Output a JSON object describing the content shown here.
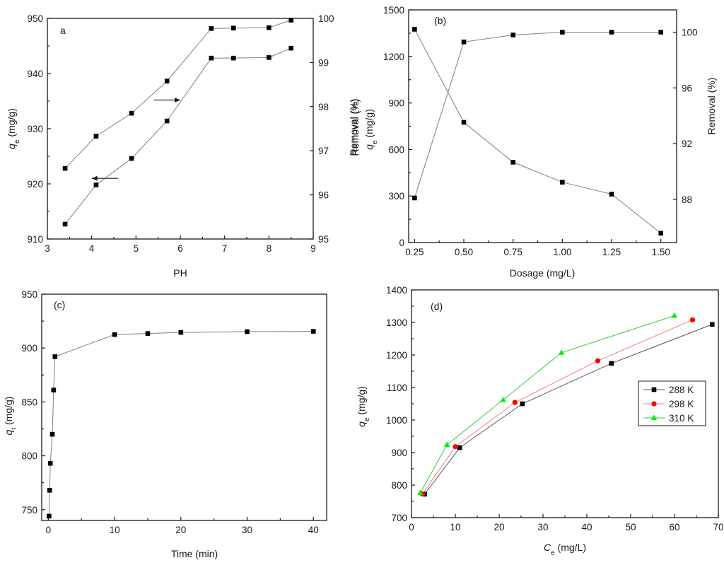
{
  "chart_data": [
    {
      "panel": "a",
      "type": "line",
      "panel_label": "a",
      "xlabel": "PH",
      "ylabel_main": "q",
      "ylabel_sub": "e",
      "ylabel_unit": " (mg/g)",
      "ylabel_right": "Removal (%)",
      "xlim": [
        3,
        9
      ],
      "ylim": [
        910,
        950
      ],
      "ylim_right": [
        95,
        100
      ],
      "xticks": [
        "3",
        "4",
        "5",
        "6",
        "7",
        "8",
        "9"
      ],
      "yticks": [
        "910",
        "920",
        "930",
        "940",
        "950"
      ],
      "yticks_right": [
        "95",
        "96",
        "97",
        "98",
        "99",
        "100"
      ],
      "series": [
        {
          "name": "qe",
          "axis": "left",
          "color": "#7f7f7f",
          "marker": "square",
          "x": [
            3.4,
            4.1,
            4.9,
            5.7,
            6.7,
            7.2,
            8.0,
            8.5
          ],
          "values": [
            912.7,
            919.8,
            924.6,
            931.4,
            942.8,
            942.8,
            942.9,
            944.6
          ]
        },
        {
          "name": "Removal",
          "axis": "right",
          "color": "#7f7f7f",
          "marker": "square",
          "x": [
            3.4,
            4.1,
            4.9,
            5.7,
            6.7,
            7.2,
            8.0,
            8.5
          ],
          "values": [
            96.6,
            97.33,
            97.85,
            98.58,
            99.77,
            99.78,
            99.79,
            99.96
          ]
        }
      ],
      "annotations": [
        {
          "type": "arrow",
          "direction": "left",
          "x": 4.6,
          "y": 921.0,
          "length": 0.6,
          "axis": "left"
        },
        {
          "type": "arrow",
          "direction": "right",
          "x": 5.4,
          "y": 98.15,
          "length": 0.6,
          "axis": "right"
        }
      ]
    },
    {
      "panel": "b",
      "type": "line",
      "panel_label": "(b)",
      "xlabel": "Dosage (mg/L)",
      "ylabel_main": "q",
      "ylabel_sub": "e",
      "ylabel_unit": " (mg/g)",
      "ylabel_extra": "Removal (%)",
      "ylabel_right": "Removal (%)",
      "xlim": [
        0.22,
        1.58
      ],
      "ylim": [
        0,
        1500
      ],
      "ylim_right": [
        84.9,
        101.6
      ],
      "xticks": [
        "0.25",
        "0.50",
        "0.75",
        "1.00",
        "1.25",
        "1.50"
      ],
      "xtick_values": [
        0.25,
        0.5,
        0.75,
        1.0,
        1.25,
        1.5
      ],
      "yticks": [
        "0",
        "300",
        "600",
        "900",
        "1200",
        "1500"
      ],
      "yticks_right": [
        "88",
        "92",
        "96",
        "100"
      ],
      "series": [
        {
          "name": "qe",
          "axis": "left",
          "color": "#7f7f7f",
          "marker": "square",
          "x": [
            0.25,
            0.5,
            0.75,
            1.0,
            1.25,
            1.5
          ],
          "values": [
            1375,
            775,
            518,
            389,
            312,
            60
          ]
        },
        {
          "name": "Removal",
          "axis": "right",
          "color": "#7f7f7f",
          "marker": "square",
          "x": [
            0.25,
            0.5,
            0.75,
            1.0,
            1.25,
            1.5
          ],
          "values": [
            88.1,
            99.3,
            99.8,
            100.0,
            100.0,
            100.0
          ]
        }
      ]
    },
    {
      "panel": "c",
      "type": "line",
      "panel_label": "(c)",
      "xlabel": "Time (min)",
      "ylabel_main": "q",
      "ylabel_sub": "t",
      "ylabel_unit": " (mg/g)",
      "xlim": [
        -1,
        42
      ],
      "ylim": [
        740,
        950
      ],
      "xticks": [
        "0",
        "10",
        "20",
        "30",
        "40"
      ],
      "yticks": [
        "750",
        "800",
        "850",
        "900",
        "950"
      ],
      "series": [
        {
          "name": "qt",
          "axis": "left",
          "color": "#7f7f7f",
          "marker": "square",
          "x": [
            0.1,
            0.2,
            0.3,
            0.6,
            0.8,
            1.0,
            10,
            15,
            20,
            30,
            40
          ],
          "values": [
            744,
            768,
            793,
            820,
            861,
            892,
            912.5,
            913.5,
            914.5,
            915.2,
            915.5
          ]
        }
      ]
    },
    {
      "panel": "d",
      "type": "line",
      "panel_label": "(d)",
      "xlabel_main": "C",
      "xlabel_sub": "e",
      "xlabel_unit": " (mg/L)",
      "ylabel_main": "q",
      "ylabel_sub": "e",
      "ylabel_unit": " (mg/g)",
      "xlim": [
        0,
        70
      ],
      "ylim": [
        700,
        1400
      ],
      "xticks": [
        "0",
        "10",
        "20",
        "30",
        "40",
        "50",
        "60",
        "70"
      ],
      "yticks": [
        "700",
        "800",
        "900",
        "1000",
        "1100",
        "1200",
        "1300",
        "1400"
      ],
      "legend_position": "middle-right",
      "series": [
        {
          "name": "288 K",
          "color": "#555555",
          "marker_color": "#000000",
          "marker": "square",
          "x": [
            3.0,
            11.0,
            25.3,
            45.6,
            68.6
          ],
          "values": [
            772,
            915,
            1050,
            1174,
            1294
          ]
        },
        {
          "name": "298 K",
          "color": "#f08080",
          "marker_color": "#ff0000",
          "marker": "circle",
          "x": [
            2.5,
            10.0,
            23.6,
            42.5,
            64.1
          ],
          "values": [
            773,
            918,
            1054,
            1182,
            1308
          ]
        },
        {
          "name": "310 K",
          "color": "#33cc33",
          "marker_color": "#00ee00",
          "marker": "triangle",
          "x": [
            2.0,
            8.1,
            20.9,
            34.2,
            60.0
          ],
          "values": [
            776,
            924,
            1062,
            1207,
            1321
          ]
        }
      ]
    }
  ]
}
